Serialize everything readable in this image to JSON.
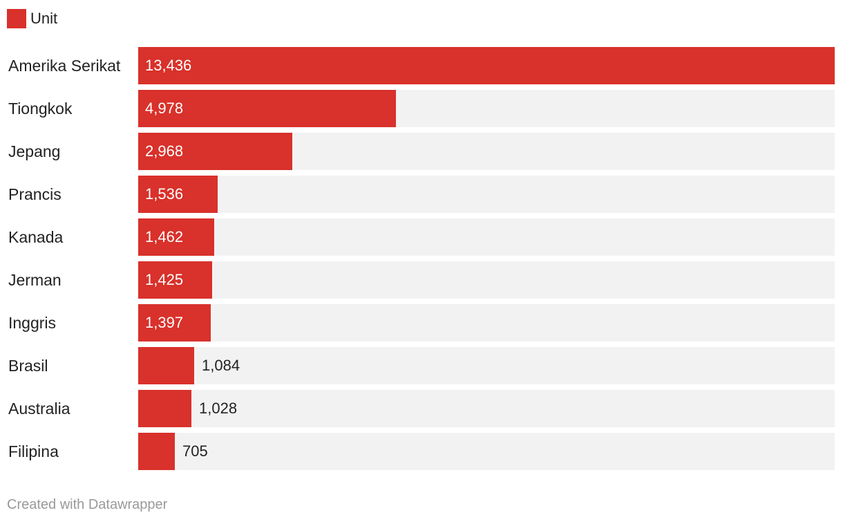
{
  "legend": {
    "label": "Unit",
    "color": "#d9312b"
  },
  "footer": {
    "credit": "Created with Datawrapper"
  },
  "colors": {
    "bar": "#d9312b",
    "track": "#f2f2f2",
    "label_inside": "#ffffff",
    "label_outside": "#222222"
  },
  "chart_data": {
    "type": "bar",
    "orientation": "horizontal",
    "title": "",
    "xlabel": "",
    "ylabel": "",
    "xlim": [
      0,
      13436
    ],
    "grid": false,
    "legend_position": "top-left",
    "categories": [
      "Amerika Serikat",
      "Tiongkok",
      "Jepang",
      "Prancis",
      "Kanada",
      "Jerman",
      "Inggris",
      "Brasil",
      "Australia",
      "Filipina"
    ],
    "values": [
      13436,
      4978,
      2968,
      1536,
      1462,
      1425,
      1397,
      1084,
      1028,
      705
    ],
    "value_labels": [
      "13,436",
      "4,978",
      "2,968",
      "1,536",
      "1,462",
      "1,425",
      "1,397",
      "1,084",
      "1,028",
      "705"
    ],
    "series": [
      {
        "name": "Unit"
      }
    ]
  }
}
